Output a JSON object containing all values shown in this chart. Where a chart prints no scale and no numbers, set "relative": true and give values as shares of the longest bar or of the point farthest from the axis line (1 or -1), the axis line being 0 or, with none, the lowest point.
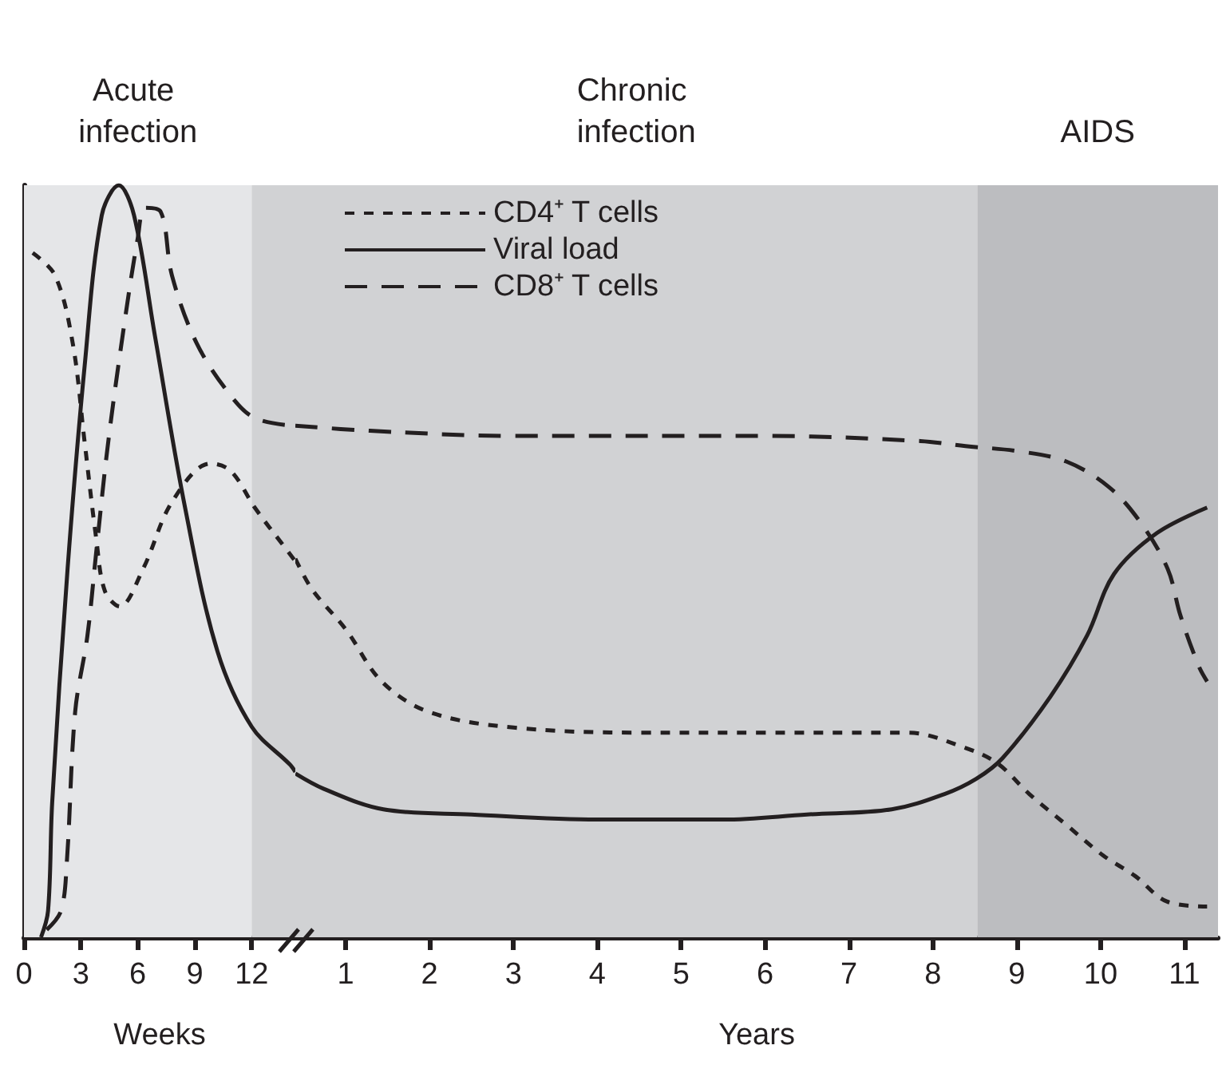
{
  "chart_data": [
    {
      "type": "line",
      "relative": true,
      "xlabel": "Weeks",
      "xlim": [
        0,
        14.3
      ],
      "xticks": [
        0,
        3,
        6,
        9,
        12
      ],
      "grid": false,
      "legend": false,
      "marker": "none",
      "tick_labels": "x",
      "bands": [
        {
          "axis": "x",
          "from": 0,
          "to": 12,
          "label": "Acute infection",
          "color": "#e5e6e8"
        },
        {
          "axis": "x",
          "from": 12,
          "to": 14.3,
          "color": "#d1d2d4"
        }
      ],
      "series": [
        {
          "color": "#231f20",
          "line_style": "dotted",
          "x": [
            0.46,
            1.64,
            2.57,
            3.19,
            3.81,
            4.27,
            5.05,
            6.28,
            7.83,
            9.84,
            10.9,
            12.2,
            13.7,
            14.3
          ],
          "values": [
            0.91,
            0.88,
            0.79,
            0.66,
            0.53,
            0.46,
            0.44,
            0.49,
            0.58,
            0.63,
            0.62,
            0.57,
            0.52,
            0.5
          ]
        },
        {
          "color": "#231f20",
          "line_style": "solid",
          "x": [
            0.9,
            1.27,
            1.49,
            2.3,
            3.2,
            4.1,
            5.0,
            5.8,
            6.9,
            8.5,
            10.2,
            12,
            14.0,
            14.3
          ],
          "values": [
            0.0,
            0.035,
            0.18,
            0.49,
            0.76,
            0.96,
            1.0,
            0.96,
            0.8,
            0.57,
            0.38,
            0.28,
            0.23,
            0.22
          ]
        },
        {
          "color": "#231f20",
          "line_style": "dashed",
          "x": [
            1.2,
            1.95,
            2.26,
            2.7,
            3.34,
            3.8,
            4.4,
            5.2,
            6.0,
            6.4,
            7.2,
            7.8,
            9.1,
            10.9,
            12.2,
            14.3
          ],
          "values": [
            0.01,
            0.035,
            0.1,
            0.3,
            0.4,
            0.51,
            0.65,
            0.8,
            0.93,
            0.97,
            0.965,
            0.88,
            0.79,
            0.72,
            0.69,
            0.68
          ]
        }
      ]
    },
    {
      "type": "line",
      "relative": true,
      "xlabel": "Years",
      "xlim": [
        0.4,
        11.4
      ],
      "xticks": [
        1,
        2,
        3,
        4,
        5,
        6,
        7,
        8,
        9,
        10,
        11
      ],
      "grid": false,
      "legend": "top left",
      "marker": "none",
      "tick_labels": "x",
      "bands": [
        {
          "axis": "x",
          "from": 0.4,
          "to": 8.53,
          "label": "Chronic infection",
          "color": "#d1d2d4"
        },
        {
          "axis": "x",
          "from": 8.53,
          "to": 11.4,
          "label": "AIDS",
          "color": "#bcbdc0"
        }
      ],
      "series": [
        {
          "name": "CD4⁺ T cells",
          "color": "#231f20",
          "line_style": "dotted",
          "x": [
            0.4,
            0.6,
            1.01,
            1.43,
            2,
            3,
            4.5,
            6,
            7,
            7.7,
            8.39,
            8.77,
            9.15,
            9.59,
            10.03,
            10.41,
            10.79,
            11.27
          ],
          "values": [
            0.74,
            0.68,
            0.6,
            0.5,
            0.44,
            0.41,
            0.4,
            0.4,
            0.4,
            0.4,
            0.37,
            0.34,
            0.28,
            0.22,
            0.16,
            0.12,
            0.07,
            0.06
          ]
        },
        {
          "name": "Viral load",
          "color": "#231f20",
          "line_style": "solid",
          "x": [
            0.4,
            0.74,
            1.45,
            2.5,
            4,
            5.5,
            6.5,
            7.51,
            8.14,
            8.52,
            8.83,
            9.4,
            9.84,
            10.16,
            10.67,
            11.27
          ],
          "values": [
            0.32,
            0.29,
            0.25,
            0.24,
            0.23,
            0.23,
            0.24,
            0.25,
            0.28,
            0.31,
            0.35,
            0.47,
            0.59,
            0.71,
            0.79,
            0.84
          ]
        },
        {
          "name": "CD8⁺ T cells",
          "color": "#231f20",
          "line_style": "dashed",
          "x": [
            0.4,
            1.29,
            3,
            6,
            7.85,
            8.39,
            9.02,
            9.59,
            10.1,
            10.48,
            10.8,
            10.95,
            11.17,
            11.27
          ],
          "values": [
            1,
            0.99,
            0.98,
            0.98,
            0.97,
            0.96,
            0.95,
            0.93,
            0.88,
            0.81,
            0.72,
            0.63,
            0.53,
            0.5
          ]
        }
      ]
    }
  ]
}
